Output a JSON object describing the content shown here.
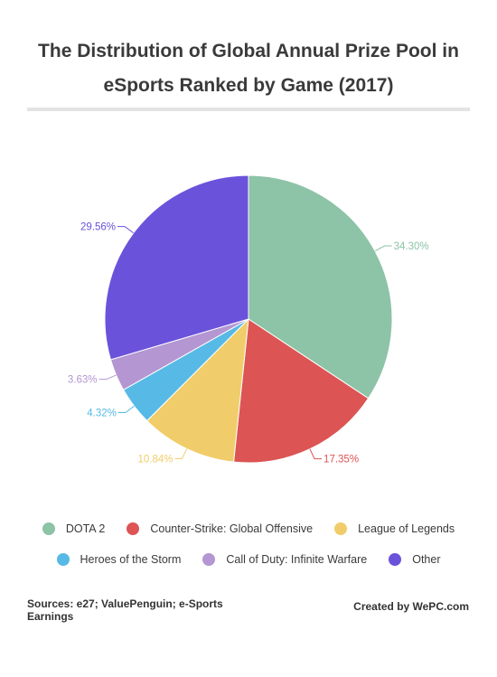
{
  "title_line1": "The Distribution of Global Annual Prize Pool in",
  "title_line2": "eSports Ranked by Game (2017)",
  "chart_data": {
    "type": "pie",
    "categories": [
      "DOTA 2",
      "Counter-Strike: Global Offensive",
      "League of Legends",
      "Heroes of the Storm",
      "Call of Duty: Infinite Warfare",
      "Other"
    ],
    "values": [
      34.3,
      17.35,
      10.84,
      4.32,
      3.63,
      29.56
    ],
    "labels": [
      "34.30%",
      "17.35%",
      "10.84%",
      "4.32%",
      "3.63%",
      "29.56%"
    ],
    "colors": [
      "#8dc3a7",
      "#dc5454",
      "#f0cd6a",
      "#57b9e6",
      "#b396d2",
      "#6b52db"
    ],
    "legend_position": "bottom"
  },
  "legend": {
    "row1": [
      "DOTA 2",
      "Counter-Strike: Global Offensive",
      "League of Legends"
    ],
    "row2": [
      "Heroes of the Storm",
      "Call of Duty: Infinite Warfare",
      "Other"
    ]
  },
  "footer": {
    "sources": "Sources: e27; ValuePenguin; e-Sports Earnings",
    "credit": "Created by WePC.com"
  }
}
